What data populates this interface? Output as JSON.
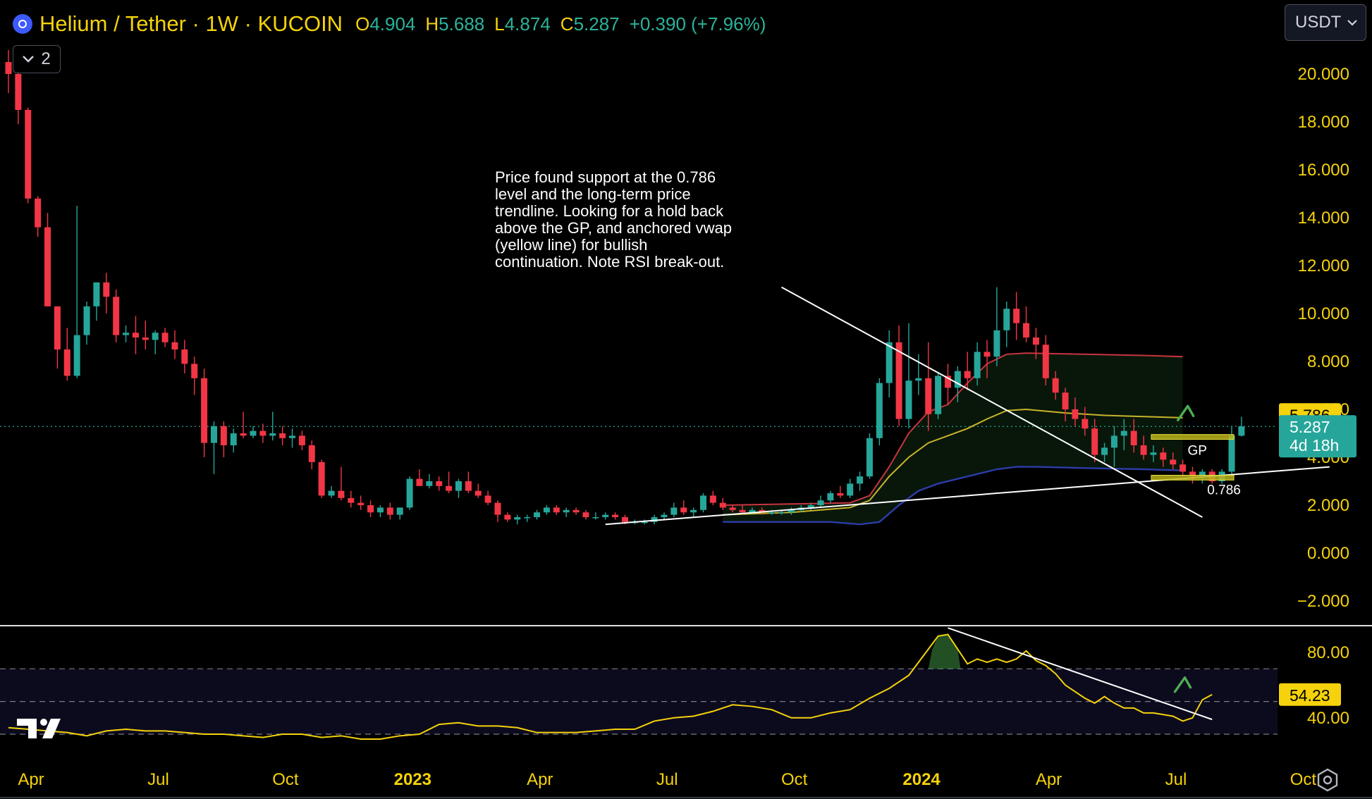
{
  "header": {
    "symbol": "Helium / Tether · 1W · KUCOIN",
    "open_label": "O",
    "open": "4.904",
    "high_label": "H",
    "high": "5.688",
    "low_label": "L",
    "low": "4.874",
    "close_label": "C",
    "close": "5.287",
    "change": "+0.390 (+7.96%)",
    "indicator_count": "2"
  },
  "currency": "USDT",
  "annotation": "Price found support at the 0.786\nlevel and the long-term price\ntrendline. Looking for a hold back\nabove the GP, and anchored vwap\n(yellow line) for bullish\ncontinuation. Note RSI break-out.",
  "colors": {
    "up": "#26a69a",
    "down": "#f23645",
    "axis_text": "#f5d20b",
    "vwap": "#c9b32b",
    "ma_red": "#c8343f",
    "ma_blue": "#2c3ca8",
    "rsi": "#f5d20b",
    "trendline": "#ffffff"
  },
  "chart_data": [
    {
      "type": "candlestick",
      "title": "Helium / Tether · 1W · KUCOIN",
      "ylim": [
        -2.7,
        21.2
      ],
      "y_ticks": [
        "20.000",
        "18.000",
        "16.000",
        "14.000",
        "12.000",
        "10.000",
        "8.000",
        "6.000",
        "4.000",
        "2.000",
        "0.000",
        "−2.000"
      ],
      "y_tick_values": [
        20,
        18,
        16,
        14,
        12,
        10,
        8,
        6,
        4,
        2,
        0,
        -2
      ],
      "x_ticks": [
        "Apr",
        "Jul",
        "Oct",
        "2023",
        "Apr",
        "Jul",
        "Oct",
        "2024",
        "Apr",
        "Jul",
        "Oct"
      ],
      "x_tick_bold": [
        false,
        false,
        false,
        true,
        false,
        false,
        false,
        true,
        false,
        false,
        false
      ],
      "x_tick_weeks": [
        0,
        13,
        26,
        39,
        52,
        65,
        78,
        91,
        104,
        117,
        130
      ],
      "candles": [
        [
          20.5,
          21.0,
          19.2,
          20.0
        ],
        [
          20.0,
          20.4,
          17.9,
          18.5
        ],
        [
          18.5,
          18.6,
          14.6,
          14.8
        ],
        [
          14.8,
          14.9,
          13.2,
          13.6
        ],
        [
          13.6,
          14.2,
          10.3,
          10.3
        ],
        [
          10.3,
          10.3,
          7.7,
          8.5
        ],
        [
          8.5,
          9.4,
          7.2,
          7.4
        ],
        [
          7.4,
          14.5,
          7.3,
          9.1
        ],
        [
          9.1,
          10.5,
          8.7,
          10.3
        ],
        [
          10.3,
          11.3,
          9.7,
          11.3
        ],
        [
          11.3,
          11.7,
          10.0,
          10.7
        ],
        [
          10.7,
          11.0,
          8.8,
          9.1
        ],
        [
          9.1,
          9.5,
          8.8,
          9.2
        ],
        [
          9.2,
          9.9,
          8.3,
          9.0
        ],
        [
          9.0,
          9.7,
          8.5,
          8.9
        ],
        [
          8.9,
          9.3,
          8.3,
          9.2
        ],
        [
          9.2,
          9.4,
          8.6,
          8.8
        ],
        [
          8.8,
          9.3,
          8.1,
          8.5
        ],
        [
          8.5,
          8.9,
          7.5,
          7.9
        ],
        [
          7.9,
          8.2,
          6.6,
          7.3
        ],
        [
          7.3,
          7.7,
          4.0,
          4.6
        ],
        [
          4.6,
          5.5,
          3.3,
          5.3
        ],
        [
          5.3,
          5.5,
          4.0,
          4.5
        ],
        [
          4.5,
          5.2,
          4.2,
          5.0
        ],
        [
          5.0,
          5.9,
          4.8,
          4.9
        ],
        [
          4.9,
          5.3,
          4.8,
          5.1
        ],
        [
          5.1,
          5.4,
          4.6,
          4.9
        ],
        [
          4.9,
          5.9,
          4.7,
          5.0
        ],
        [
          5.0,
          5.3,
          4.5,
          4.8
        ],
        [
          4.8,
          5.2,
          4.4,
          4.9
        ],
        [
          4.9,
          5.1,
          4.3,
          4.5
        ],
        [
          4.5,
          4.7,
          3.5,
          3.8
        ],
        [
          3.8,
          3.9,
          2.3,
          2.4
        ],
        [
          2.4,
          2.8,
          2.3,
          2.6
        ],
        [
          2.6,
          3.6,
          2.2,
          2.3
        ],
        [
          2.3,
          2.6,
          1.9,
          2.1
        ],
        [
          2.1,
          2.4,
          1.8,
          2.0
        ],
        [
          2.0,
          2.2,
          1.5,
          1.7
        ],
        [
          1.7,
          2.0,
          1.5,
          1.9
        ],
        [
          1.9,
          2.1,
          1.4,
          1.6
        ],
        [
          1.6,
          1.9,
          1.4,
          1.9
        ],
        [
          1.9,
          3.2,
          1.8,
          3.1
        ],
        [
          3.1,
          3.5,
          2.8,
          2.8
        ],
        [
          2.8,
          3.3,
          2.7,
          3.0
        ],
        [
          3.0,
          3.2,
          2.6,
          2.8
        ],
        [
          2.8,
          3.4,
          2.5,
          2.6
        ],
        [
          2.6,
          3.1,
          2.3,
          3.0
        ],
        [
          3.0,
          3.4,
          2.5,
          2.6
        ],
        [
          2.6,
          2.9,
          2.3,
          2.4
        ],
        [
          2.4,
          2.6,
          2.0,
          2.1
        ],
        [
          2.1,
          2.2,
          1.3,
          1.6
        ],
        [
          1.6,
          1.7,
          1.3,
          1.4
        ],
        [
          1.4,
          1.6,
          1.2,
          1.5
        ],
        [
          1.5,
          1.6,
          1.3,
          1.5
        ],
        [
          1.5,
          1.8,
          1.4,
          1.7
        ],
        [
          1.7,
          2.0,
          1.6,
          1.9
        ],
        [
          1.9,
          2.0,
          1.6,
          1.7
        ],
        [
          1.7,
          1.9,
          1.5,
          1.8
        ],
        [
          1.8,
          1.9,
          1.6,
          1.7
        ],
        [
          1.7,
          1.8,
          1.4,
          1.5
        ],
        [
          1.5,
          1.7,
          1.4,
          1.5
        ],
        [
          1.5,
          1.7,
          1.4,
          1.6
        ],
        [
          1.6,
          1.7,
          1.4,
          1.5
        ],
        [
          1.5,
          1.6,
          1.2,
          1.3
        ],
        [
          1.3,
          1.4,
          1.2,
          1.3
        ],
        [
          1.3,
          1.4,
          1.2,
          1.3
        ],
        [
          1.3,
          1.6,
          1.2,
          1.5
        ],
        [
          1.5,
          1.7,
          1.4,
          1.6
        ],
        [
          1.6,
          2.1,
          1.5,
          1.9
        ],
        [
          1.9,
          2.2,
          1.6,
          1.7
        ],
        [
          1.7,
          1.9,
          1.5,
          1.8
        ],
        [
          1.8,
          2.5,
          1.7,
          2.4
        ],
        [
          2.4,
          2.6,
          2.0,
          2.1
        ],
        [
          2.1,
          2.3,
          1.8,
          1.9
        ],
        [
          1.9,
          2.0,
          1.7,
          1.8
        ],
        [
          1.8,
          2.0,
          1.6,
          1.7
        ],
        [
          1.7,
          1.9,
          1.6,
          1.8
        ],
        [
          1.8,
          1.9,
          1.6,
          1.7
        ],
        [
          1.7,
          1.8,
          1.6,
          1.7
        ],
        [
          1.7,
          1.8,
          1.6,
          1.7
        ],
        [
          1.7,
          1.9,
          1.6,
          1.8
        ],
        [
          1.8,
          2.0,
          1.7,
          1.9
        ],
        [
          1.9,
          2.1,
          1.8,
          2.0
        ],
        [
          2.0,
          2.4,
          1.9,
          2.2
        ],
        [
          2.2,
          2.6,
          2.1,
          2.5
        ],
        [
          2.5,
          2.8,
          2.3,
          2.4
        ],
        [
          2.4,
          3.1,
          2.3,
          2.9
        ],
        [
          2.9,
          3.4,
          2.6,
          3.2
        ],
        [
          3.2,
          5.0,
          3.1,
          4.8
        ],
        [
          4.8,
          7.3,
          4.5,
          7.1
        ],
        [
          7.1,
          9.3,
          6.5,
          8.8
        ],
        [
          8.8,
          9.5,
          5.3,
          5.6
        ],
        [
          5.6,
          9.6,
          5.2,
          7.2
        ],
        [
          7.2,
          8.3,
          6.6,
          7.3
        ],
        [
          7.3,
          8.8,
          5.1,
          5.8
        ],
        [
          5.8,
          7.5,
          5.6,
          7.4
        ],
        [
          7.4,
          7.9,
          6.2,
          6.9
        ],
        [
          6.9,
          7.8,
          6.3,
          7.6
        ],
        [
          7.6,
          8.4,
          6.8,
          7.3
        ],
        [
          7.3,
          8.8,
          7.0,
          8.4
        ],
        [
          8.4,
          8.9,
          7.3,
          8.2
        ],
        [
          8.2,
          11.1,
          7.8,
          9.3
        ],
        [
          9.3,
          10.5,
          8.6,
          10.2
        ],
        [
          10.2,
          10.9,
          8.9,
          9.6
        ],
        [
          9.6,
          10.3,
          8.8,
          9.0
        ],
        [
          9.0,
          9.4,
          8.1,
          8.7
        ],
        [
          8.7,
          9.1,
          7.0,
          7.3
        ],
        [
          7.3,
          7.6,
          6.4,
          6.7
        ],
        [
          6.7,
          6.9,
          5.5,
          6.0
        ],
        [
          6.0,
          6.5,
          5.3,
          5.6
        ],
        [
          5.6,
          6.1,
          4.9,
          5.2
        ],
        [
          5.2,
          5.6,
          3.8,
          4.1
        ],
        [
          4.1,
          4.6,
          3.8,
          4.4
        ],
        [
          4.4,
          5.3,
          3.6,
          4.9
        ],
        [
          4.9,
          5.6,
          4.3,
          5.1
        ],
        [
          5.1,
          5.6,
          4.2,
          4.5
        ],
        [
          4.5,
          4.9,
          3.9,
          4.1
        ],
        [
          4.1,
          4.5,
          3.8,
          4.2
        ],
        [
          4.2,
          4.4,
          3.6,
          3.9
        ],
        [
          3.9,
          4.2,
          3.5,
          3.7
        ],
        [
          3.7,
          3.9,
          3.2,
          3.4
        ],
        [
          3.4,
          3.6,
          2.9,
          3.2
        ],
        [
          3.2,
          3.5,
          2.9,
          3.4
        ],
        [
          3.4,
          3.5,
          2.9,
          3.0
        ],
        [
          3.0,
          3.5,
          2.9,
          3.4
        ],
        [
          3.4,
          5.3,
          3.3,
          4.9
        ],
        [
          4.9,
          5.69,
          4.87,
          5.29
        ]
      ],
      "ma_red": [
        [
          73,
          2.0
        ],
        [
          80,
          2.05
        ],
        [
          86,
          2.1
        ],
        [
          88,
          2.4
        ],
        [
          90,
          3.6
        ],
        [
          92,
          5.0
        ],
        [
          94,
          5.9
        ],
        [
          96,
          6.2
        ],
        [
          98,
          7.1
        ],
        [
          100,
          7.9
        ],
        [
          102,
          8.3
        ],
        [
          104,
          8.35
        ],
        [
          110,
          8.3
        ],
        [
          116,
          8.25
        ],
        [
          120,
          8.2
        ]
      ],
      "vwap": [
        [
          73,
          1.6
        ],
        [
          80,
          1.7
        ],
        [
          86,
          1.9
        ],
        [
          88,
          2.2
        ],
        [
          90,
          3.2
        ],
        [
          92,
          4.0
        ],
        [
          94,
          4.6
        ],
        [
          96,
          4.9
        ],
        [
          98,
          5.2
        ],
        [
          100,
          5.6
        ],
        [
          102,
          5.95
        ],
        [
          104,
          6.0
        ],
        [
          108,
          5.85
        ],
        [
          112,
          5.75
        ],
        [
          116,
          5.7
        ],
        [
          120,
          5.65
        ]
      ],
      "ma_blue": [
        [
          73,
          1.3
        ],
        [
          84,
          1.3
        ],
        [
          87,
          1.2
        ],
        [
          89,
          1.3
        ],
        [
          91,
          2.0
        ],
        [
          93,
          2.6
        ],
        [
          95,
          2.9
        ],
        [
          97,
          3.1
        ],
        [
          99,
          3.3
        ],
        [
          101,
          3.5
        ],
        [
          103,
          3.6
        ],
        [
          105,
          3.6
        ],
        [
          110,
          3.55
        ],
        [
          116,
          3.5
        ],
        [
          120,
          3.45
        ]
      ],
      "lines": [
        {
          "from": [
            61,
            1.2
          ],
          "to": [
            135,
            3.6
          ]
        },
        {
          "from": [
            79,
            11.1
          ],
          "to": [
            122,
            1.5
          ]
        }
      ],
      "zones": [
        {
          "label": "GP",
          "y1": 4.75,
          "y2": 4.95,
          "w1": 117,
          "w2": 125
        },
        {
          "label": "0.786",
          "y1": 3.05,
          "y2": 3.25,
          "w1": 117,
          "w2": 125
        }
      ],
      "current_price": "5.287",
      "countdown": "4d 18h",
      "price_tag": "5.786",
      "price_tag_value": 5.786,
      "current_value": 5.287
    },
    {
      "type": "line",
      "name": "RSI",
      "ylim": [
        16,
        100
      ],
      "y_ticks": [
        "80.00",
        "40.00"
      ],
      "y_tick_values": [
        80,
        40
      ],
      "bands": [
        70,
        50,
        30
      ],
      "current": "54.23",
      "current_value": 54.23,
      "values": [
        [
          0,
          34
        ],
        [
          2,
          33
        ],
        [
          4,
          32
        ],
        [
          6,
          31
        ],
        [
          8,
          29
        ],
        [
          10,
          32
        ],
        [
          12,
          33
        ],
        [
          14,
          32
        ],
        [
          16,
          32
        ],
        [
          18,
          31
        ],
        [
          20,
          30
        ],
        [
          22,
          30
        ],
        [
          24,
          29
        ],
        [
          26,
          28
        ],
        [
          28,
          30
        ],
        [
          30,
          30
        ],
        [
          32,
          28
        ],
        [
          34,
          29
        ],
        [
          36,
          27
        ],
        [
          38,
          27
        ],
        [
          40,
          29
        ],
        [
          42,
          30
        ],
        [
          44,
          36
        ],
        [
          46,
          37
        ],
        [
          48,
          35
        ],
        [
          50,
          35
        ],
        [
          52,
          34
        ],
        [
          54,
          31
        ],
        [
          56,
          31
        ],
        [
          58,
          31
        ],
        [
          60,
          32
        ],
        [
          62,
          33
        ],
        [
          64,
          33
        ],
        [
          66,
          38
        ],
        [
          68,
          40
        ],
        [
          70,
          41
        ],
        [
          72,
          44
        ],
        [
          74,
          48
        ],
        [
          76,
          47
        ],
        [
          78,
          45
        ],
        [
          80,
          40
        ],
        [
          82,
          40
        ],
        [
          84,
          43
        ],
        [
          86,
          45
        ],
        [
          88,
          52
        ],
        [
          90,
          58
        ],
        [
          92,
          66
        ],
        [
          94,
          82
        ],
        [
          95,
          90
        ],
        [
          96,
          91
        ],
        [
          97,
          82
        ],
        [
          98,
          73
        ],
        [
          99,
          76
        ],
        [
          100,
          74
        ],
        [
          101,
          76
        ],
        [
          102,
          74
        ],
        [
          103,
          76
        ],
        [
          104,
          81
        ],
        [
          105,
          75
        ],
        [
          106,
          72
        ],
        [
          107,
          67
        ],
        [
          108,
          60
        ],
        [
          109,
          56
        ],
        [
          110,
          52
        ],
        [
          111,
          49
        ],
        [
          112,
          53
        ],
        [
          113,
          49
        ],
        [
          114,
          46
        ],
        [
          115,
          46
        ],
        [
          116,
          43
        ],
        [
          117,
          43
        ],
        [
          118,
          42
        ],
        [
          119,
          41
        ],
        [
          120,
          38
        ],
        [
          121,
          40
        ],
        [
          122,
          51
        ],
        [
          123,
          54.23
        ]
      ],
      "trendline": {
        "from": [
          96,
          95
        ],
        "to": [
          123,
          39
        ]
      }
    }
  ]
}
